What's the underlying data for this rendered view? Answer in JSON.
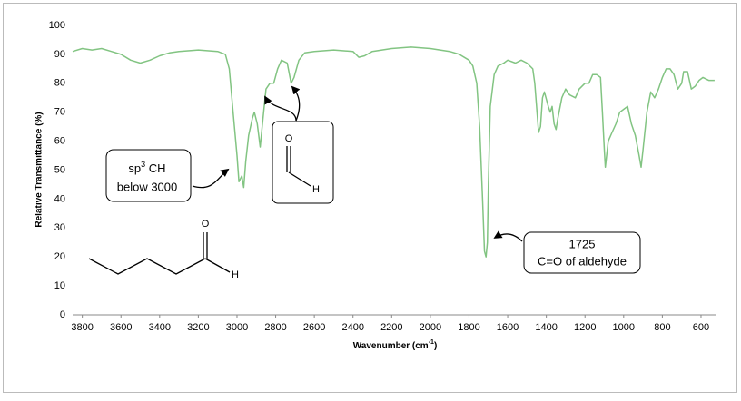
{
  "chart_data": {
    "type": "line",
    "xlabel": {
      "text": "Wavenumber (cm",
      "sup": "-1",
      "after": ")"
    },
    "ylabel": "Relative Transmittance (%)",
    "xlim": [
      3850,
      520
    ],
    "ylim": [
      0,
      100
    ],
    "xticks": [
      3800,
      3600,
      3400,
      3200,
      3000,
      2800,
      2600,
      2400,
      2200,
      2000,
      1800,
      1600,
      1400,
      1200,
      1000,
      800,
      600
    ],
    "yticks": [
      0,
      10,
      20,
      30,
      40,
      50,
      60,
      70,
      80,
      90,
      100
    ],
    "grid": false,
    "series": [
      {
        "color": "#82c482",
        "x": [
          3850,
          3800,
          3750,
          3700,
          3650,
          3600,
          3550,
          3500,
          3450,
          3400,
          3350,
          3300,
          3200,
          3100,
          3060,
          3040,
          3020,
          3000,
          2990,
          2975,
          2965,
          2955,
          2940,
          2920,
          2910,
          2895,
          2880,
          2870,
          2850,
          2830,
          2810,
          2790,
          2770,
          2740,
          2720,
          2705,
          2680,
          2650,
          2600,
          2500,
          2400,
          2370,
          2340,
          2300,
          2200,
          2100,
          2000,
          1900,
          1850,
          1800,
          1780,
          1760,
          1745,
          1730,
          1720,
          1712,
          1705,
          1700,
          1690,
          1670,
          1650,
          1620,
          1600,
          1560,
          1530,
          1500,
          1470,
          1460,
          1440,
          1430,
          1420,
          1410,
          1390,
          1380,
          1370,
          1360,
          1350,
          1340,
          1320,
          1300,
          1280,
          1250,
          1230,
          1200,
          1180,
          1160,
          1140,
          1120,
          1110,
          1100,
          1095,
          1080,
          1060,
          1040,
          1020,
          1000,
          980,
          960,
          940,
          920,
          910,
          900,
          880,
          860,
          840,
          820,
          800,
          780,
          760,
          740,
          720,
          700,
          690,
          670,
          650,
          630,
          610,
          590,
          560,
          530
        ],
        "values": [
          91,
          92,
          91.5,
          92,
          91,
          90,
          88,
          87,
          88,
          89.5,
          90.5,
          91,
          91.5,
          91,
          90,
          85,
          70,
          55,
          46,
          48,
          44,
          53,
          62,
          68,
          70,
          66,
          58,
          65,
          78,
          80,
          80,
          85,
          88,
          87,
          80,
          82,
          88,
          90.5,
          91,
          91.5,
          91,
          89,
          89.5,
          91,
          92,
          92.5,
          92,
          91,
          90,
          88,
          86,
          80,
          65,
          40,
          22,
          20,
          25,
          45,
          72,
          83,
          86,
          87,
          88,
          87,
          88,
          87,
          85,
          80,
          63,
          65,
          75,
          77,
          72,
          70,
          72,
          66,
          64,
          68,
          75,
          78,
          76,
          75,
          78,
          80,
          80,
          83,
          83,
          82,
          70,
          57,
          51,
          60,
          63,
          66,
          70,
          71,
          72,
          66,
          62,
          55,
          51,
          57,
          70,
          77,
          75,
          78,
          82,
          85,
          85,
          83,
          78,
          80,
          84,
          84,
          78,
          79,
          81,
          82,
          81,
          81
        ]
      }
    ],
    "annotations": [
      {
        "base": "sp",
        "sup": "3",
        "rest": " CH",
        "line2": "below 3000"
      },
      {
        "atoms": [
          "O",
          "H"
        ]
      },
      {
        "line1": "1725",
        "line2": "C=O of aldehyde"
      }
    ],
    "structure": {
      "atoms": [
        "O",
        "H"
      ]
    }
  }
}
